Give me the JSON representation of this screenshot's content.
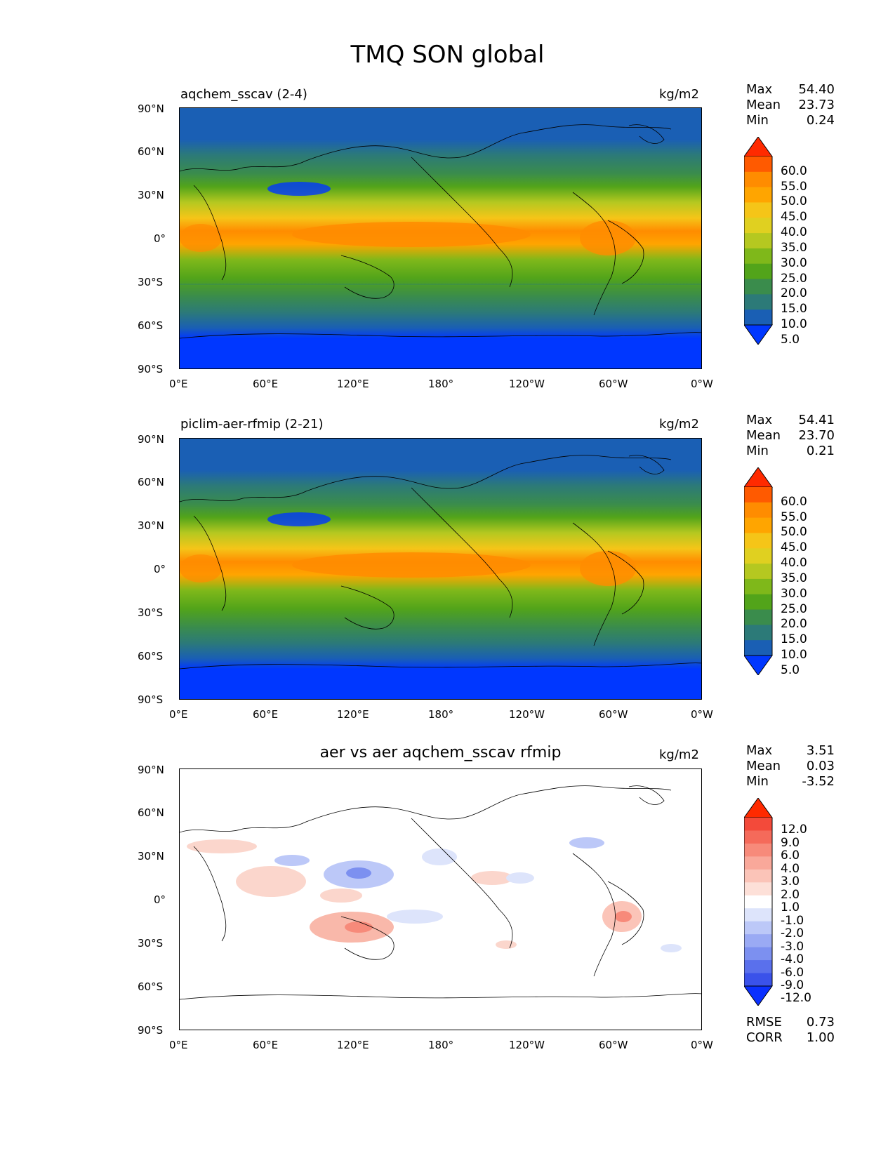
{
  "figure": {
    "title": "TMQ SON global",
    "units": "kg/m2",
    "lat_ticks": [
      "90°N",
      "60°N",
      "30°N",
      "0°",
      "30°S",
      "60°S",
      "90°S"
    ],
    "lon_ticks": [
      "0°E",
      "60°E",
      "120°E",
      "180°",
      "120°W",
      "60°W",
      "0°W"
    ]
  },
  "panels": [
    {
      "title": "aqchem_sscav (2-4)",
      "units": "kg/m2",
      "stats": [
        {
          "label": "Max",
          "value": "54.40"
        },
        {
          "label": "Mean",
          "value": "23.73"
        },
        {
          "label": "Min",
          "value": "0.24"
        }
      ],
      "colorbar_levels": [
        "60.0",
        "55.0",
        "50.0",
        "45.0",
        "40.0",
        "35.0",
        "30.0",
        "25.0",
        "20.0",
        "15.0",
        "10.0",
        "5.0"
      ],
      "colorbar_colors": [
        "#ff2a00",
        "#ff5a00",
        "#ff8c00",
        "#ffa500",
        "#f5c518",
        "#e0d020",
        "#b5c820",
        "#7fb81a",
        "#52a41a",
        "#3a8c4c",
        "#2c7a78",
        "#1a5fb4",
        "#0037ff"
      ]
    },
    {
      "title": "piclim-aer-rfmip (2-21)",
      "units": "kg/m2",
      "stats": [
        {
          "label": "Max",
          "value": "54.41"
        },
        {
          "label": "Mean",
          "value": "23.70"
        },
        {
          "label": "Min",
          "value": "0.21"
        }
      ],
      "colorbar_levels": [
        "60.0",
        "55.0",
        "50.0",
        "45.0",
        "40.0",
        "35.0",
        "30.0",
        "25.0",
        "20.0",
        "15.0",
        "10.0",
        "5.0"
      ],
      "colorbar_colors": [
        "#ff2a00",
        "#ff5a00",
        "#ff8c00",
        "#ffa500",
        "#f5c518",
        "#e0d020",
        "#b5c820",
        "#7fb81a",
        "#52a41a",
        "#3a8c4c",
        "#2c7a78",
        "#1a5fb4",
        "#0037ff"
      ]
    },
    {
      "title": "aer vs aer aqchem_sscav rfmip",
      "units": "kg/m2",
      "stats": [
        {
          "label": "Max",
          "value": "3.51"
        },
        {
          "label": "Mean",
          "value": "0.03"
        },
        {
          "label": "Min",
          "value": "-3.52"
        }
      ],
      "colorbar_levels": [
        "12.0",
        "9.0",
        "6.0",
        "4.0",
        "3.0",
        "2.0",
        "1.0",
        "-1.0",
        "-2.0",
        "-3.0",
        "-4.0",
        "-6.0",
        "-9.0",
        "-12.0"
      ],
      "colorbar_colors": [
        "#ff2a00",
        "#f34a3a",
        "#f56a5a",
        "#f78a7a",
        "#f9a89a",
        "#fbc4b8",
        "#fde0d8",
        "#ffffff",
        "#dde4fb",
        "#bcc8f8",
        "#9aaaf4",
        "#7c90f0",
        "#5a70ec",
        "#3a52ea",
        "#0a30ff"
      ],
      "extra_stats": [
        {
          "label": "RMSE",
          "value": "0.73"
        },
        {
          "label": "CORR",
          "value": "1.00"
        }
      ]
    }
  ]
}
